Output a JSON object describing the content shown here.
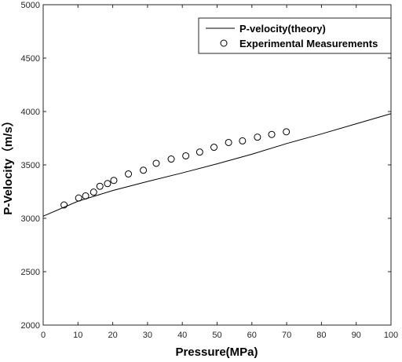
{
  "chart_data": {
    "type": "line",
    "xlabel": "Pressure(MPa)",
    "ylabel": "P-Velocity（m/s）",
    "xlim": [
      0,
      100
    ],
    "ylim": [
      2000,
      5000
    ],
    "x_ticks": [
      0,
      10,
      20,
      30,
      40,
      50,
      60,
      70,
      80,
      90,
      100
    ],
    "y_ticks": [
      2000,
      2500,
      3000,
      3500,
      4000,
      4500,
      5000
    ],
    "grid": false,
    "legend_position": "top-right",
    "series": [
      {
        "name": "P-velocity(theory)",
        "style": "line",
        "color": "#000000",
        "x": [
          0,
          10,
          20,
          30,
          40,
          50,
          60,
          70,
          80,
          90,
          100
        ],
        "y": [
          3020,
          3160,
          3260,
          3345,
          3425,
          3510,
          3600,
          3700,
          3790,
          3885,
          3980
        ]
      },
      {
        "name": "Experimental Measurements",
        "style": "marker-circle-open",
        "color": "#000000",
        "x": [
          6,
          10.2,
          12.2,
          14.5,
          16.3,
          18.5,
          20.3,
          24.5,
          28.8,
          32.5,
          36.8,
          41,
          45,
          49.1,
          53.3,
          57.3,
          61.6,
          65.7,
          69.9
        ],
        "y": [
          3125,
          3190,
          3210,
          3245,
          3300,
          3325,
          3355,
          3415,
          3450,
          3515,
          3555,
          3585,
          3620,
          3665,
          3710,
          3725,
          3760,
          3785,
          3810
        ]
      }
    ]
  }
}
